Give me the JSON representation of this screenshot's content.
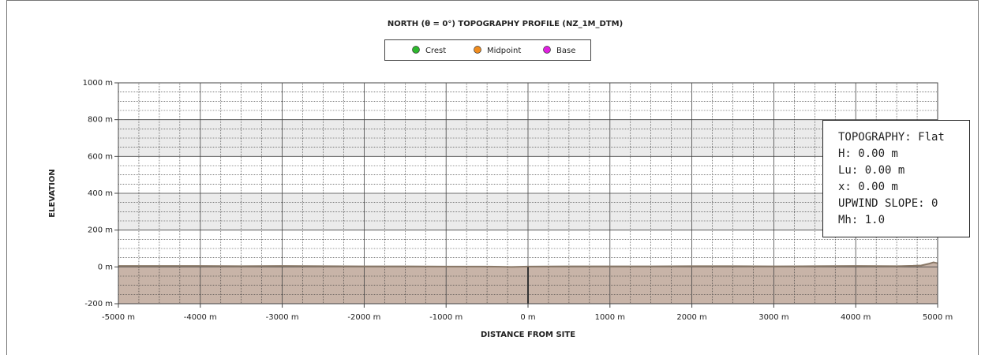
{
  "chart_data": {
    "type": "area",
    "title": "NORTH (θ = 0°) TOPOGRAPHY PROFILE (NZ_1M_DTM)",
    "x_label": "DISTANCE FROM SITE",
    "y_label": "ELEVATION",
    "legend": [
      {
        "name": "Crest",
        "color": "#2db82d"
      },
      {
        "name": "Midpoint",
        "color": "#f08c1e"
      },
      {
        "name": "Base",
        "color": "#e020e0"
      }
    ],
    "x": [
      -5000,
      -4500,
      -4000,
      -3500,
      -3000,
      -2500,
      -2000,
      -1500,
      -1000,
      -500,
      -200,
      0,
      500,
      1000,
      1500,
      2000,
      2500,
      3000,
      3500,
      4000,
      4500,
      4700,
      4800,
      4900,
      4950,
      5000
    ],
    "values": [
      5,
      5,
      5,
      4,
      5,
      4,
      3,
      3,
      2,
      2,
      0,
      2,
      3,
      3,
      3,
      4,
      4,
      3,
      4,
      5,
      4,
      6,
      8,
      18,
      25,
      20
    ],
    "color": "#8a7968",
    "fill": "#c8b4a8",
    "xlim": [
      -5000,
      5000
    ],
    "ylim": [
      -200,
      1000
    ],
    "xticks": [
      {
        "value": -5000,
        "label": "-5000 m"
      },
      {
        "value": -4000,
        "label": "-4000 m"
      },
      {
        "value": -3000,
        "label": "-3000 m"
      },
      {
        "value": -2000,
        "label": "-2000 m"
      },
      {
        "value": -1000,
        "label": "-1000 m"
      },
      {
        "value": 0,
        "label": "0 m"
      },
      {
        "value": 1000,
        "label": "1000 m"
      },
      {
        "value": 2000,
        "label": "2000 m"
      },
      {
        "value": 3000,
        "label": "3000 m"
      },
      {
        "value": 4000,
        "label": "4000 m"
      },
      {
        "value": 5000,
        "label": "5000 m"
      }
    ],
    "yticks": [
      {
        "value": -200,
        "label": "-200 m"
      },
      {
        "value": 0,
        "label": "0 m"
      },
      {
        "value": 200,
        "label": "200 m"
      },
      {
        "value": 400,
        "label": "400 m"
      },
      {
        "value": 600,
        "label": "600 m"
      },
      {
        "value": 800,
        "label": "800 m"
      },
      {
        "value": 1000,
        "label": "1000 m"
      }
    ],
    "grid": true,
    "annotation": [
      "TOPOGRAPHY: Flat",
      "H: 0.00 m",
      "Lu: 0.00 m",
      "x: 0.00 m",
      "UPWIND SLOPE: 0",
      "Mh: 1.0"
    ]
  }
}
